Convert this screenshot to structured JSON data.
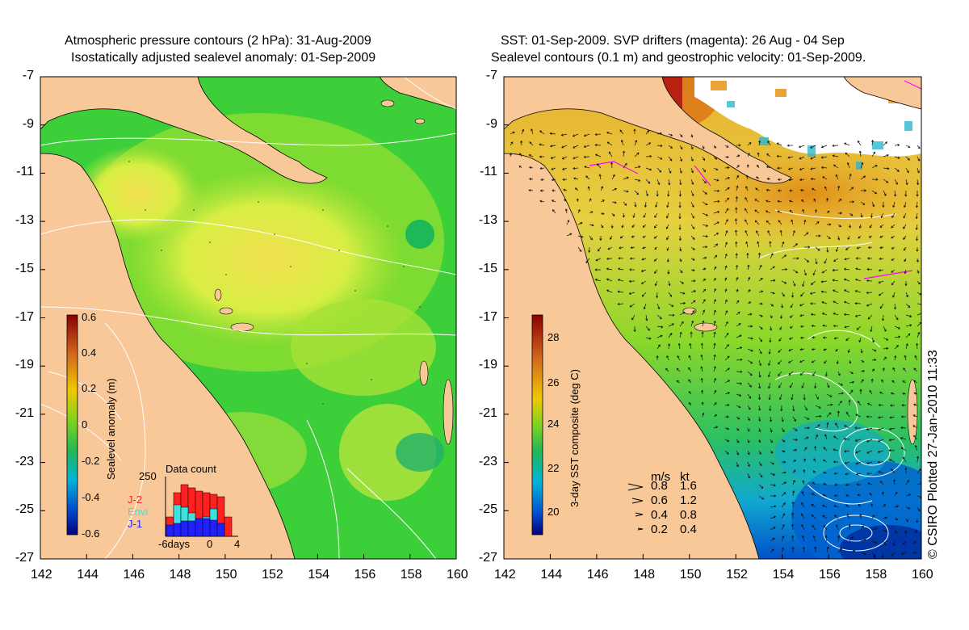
{
  "left_panel": {
    "title_line1": "Atmospheric pressure contours (2 hPa): 31-Aug-2009",
    "title_line2": "Isostatically adjusted sealevel anomaly: 01-Sep-2009",
    "colorbar": {
      "label": "Sealevel anomaly (m)",
      "ticks": [
        "0.6",
        "0.4",
        "0.2",
        "0",
        "-0.2",
        "-0.4",
        "-0.6"
      ],
      "stops": [
        "#8b0000",
        "#d2691e",
        "#f0c800",
        "#7ed321",
        "#1fb858",
        "#00b4d8",
        "#0050d0",
        "#000080"
      ]
    },
    "inset": {
      "title": "Data count",
      "y_top_label": "250",
      "legend": [
        {
          "name": "J-2",
          "color": "#ff2020"
        },
        {
          "name": "Envi",
          "color": "#40e0e0"
        },
        {
          "name": "J-1",
          "color": "#2020ff"
        }
      ],
      "x_labels": [
        "-6days",
        "0",
        "4"
      ]
    }
  },
  "right_panel": {
    "title_line1": "SST: 01-Sep-2009. SVP drifters (magenta): 26 Aug - 04 Sep",
    "title_line2": "Sealevel contours (0.1 m) and geostrophic velocity: 01-Sep-2009.",
    "colorbar": {
      "label": "3-day SST composite (deg C)",
      "ticks": [
        "28",
        "26",
        "24",
        "22",
        "20"
      ],
      "stops": [
        "#8b0000",
        "#d2691e",
        "#f0c800",
        "#7ed321",
        "#1fb858",
        "#00b4d8",
        "#0050d0",
        "#000080"
      ]
    },
    "velocity_key": {
      "header_ms": "m/s",
      "header_kt": "kt",
      "rows": [
        {
          "ms": "0.8",
          "kt": "1.6"
        },
        {
          "ms": "0.6",
          "kt": "1.2"
        },
        {
          "ms": "0.4",
          "kt": "0.8"
        },
        {
          "ms": "0.2",
          "kt": "0.4"
        }
      ]
    }
  },
  "axes": {
    "x_ticks": [
      "142",
      "144",
      "146",
      "148",
      "150",
      "152",
      "154",
      "156",
      "158",
      "160"
    ],
    "y_ticks": [
      "-7",
      "-9",
      "-11",
      "-13",
      "-15",
      "-17",
      "-19",
      "-21",
      "-23",
      "-25",
      "-27"
    ]
  },
  "credit": "© CSIRO Plotted 27-Jan-2010 11:33",
  "colors": {
    "land": "#f9c898",
    "ocean_green": "#5cd63a",
    "ocean_yellow": "#e0f040",
    "sst_orange": "#e89a20",
    "sst_blue": "#0098e0",
    "contour": "#ffffff",
    "drifter": "#ff00ff"
  }
}
